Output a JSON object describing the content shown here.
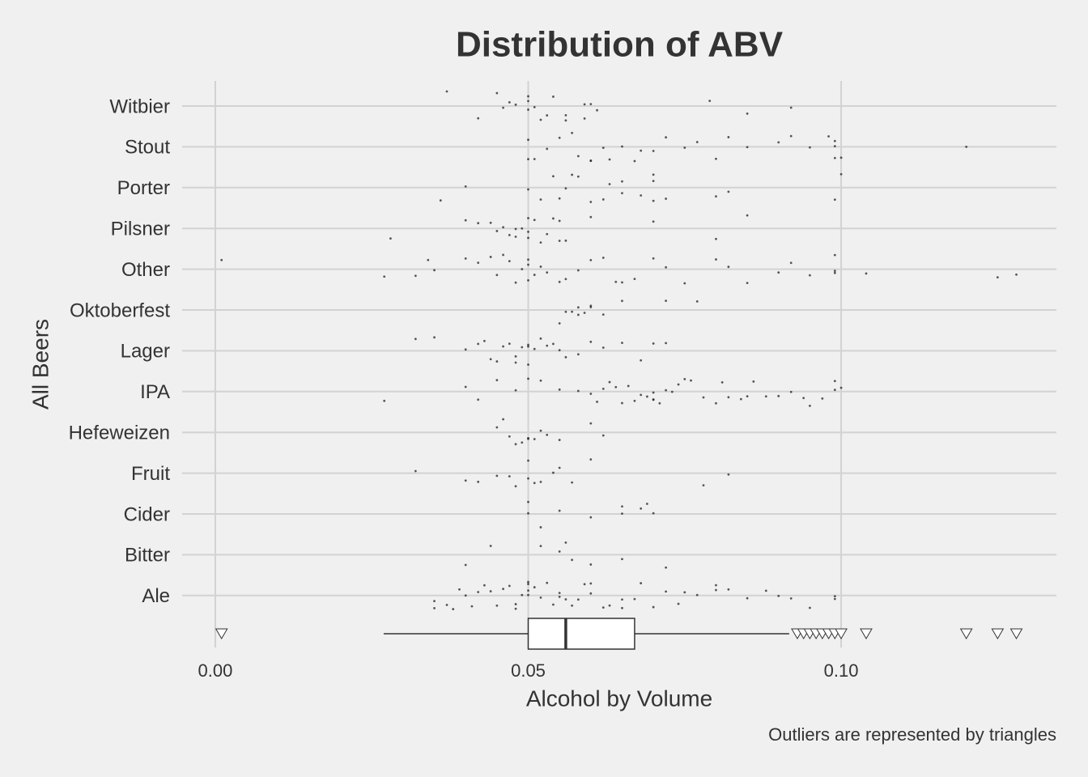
{
  "chart_data": {
    "type": "strip",
    "title": "Distribution of ABV",
    "x_label": "Alcohol by Volume",
    "y_label": "All Beers",
    "caption": "Outliers are represented by triangles",
    "xlim": [
      -0.0053,
      0.1344
    ],
    "xticks": [
      {
        "value": 0,
        "label": "0.00"
      },
      {
        "value": 0.05,
        "label": "0.05"
      },
      {
        "value": 0.1,
        "label": "0.10"
      }
    ],
    "grid": true,
    "color": "#222222",
    "categories": [
      "Witbier",
      "Stout",
      "Porter",
      "Pilsner",
      "Other",
      "Oktoberfest",
      "Lager",
      "IPA",
      "Hefeweizen",
      "Fruit",
      "Cider",
      "Bitter",
      "Ale"
    ],
    "values": [
      [
        0.037,
        0.042,
        0.045,
        0.046,
        0.047,
        0.048,
        0.05,
        0.05,
        0.05,
        0.051,
        0.052,
        0.053,
        0.054,
        0.056,
        0.056,
        0.059,
        0.059,
        0.06,
        0.061,
        0.079,
        0.085,
        0.092
      ],
      [
        0.05,
        0.05,
        0.051,
        0.053,
        0.055,
        0.057,
        0.058,
        0.06,
        0.06,
        0.062,
        0.063,
        0.065,
        0.067,
        0.068,
        0.07,
        0.072,
        0.075,
        0.077,
        0.08,
        0.082,
        0.085,
        0.09,
        0.092,
        0.095,
        0.098,
        0.099,
        0.099,
        0.099,
        0.1,
        0.12
      ],
      [
        0.036,
        0.04,
        0.05,
        0.052,
        0.054,
        0.055,
        0.056,
        0.057,
        0.058,
        0.06,
        0.062,
        0.063,
        0.065,
        0.065,
        0.068,
        0.07,
        0.07,
        0.07,
        0.072,
        0.08,
        0.082,
        0.099,
        0.1
      ],
      [
        0.028,
        0.04,
        0.042,
        0.044,
        0.045,
        0.046,
        0.047,
        0.048,
        0.048,
        0.049,
        0.05,
        0.05,
        0.05,
        0.051,
        0.052,
        0.053,
        0.054,
        0.055,
        0.055,
        0.056,
        0.06,
        0.07,
        0.08,
        0.085
      ],
      [
        0.001,
        0.027,
        0.032,
        0.034,
        0.035,
        0.04,
        0.042,
        0.044,
        0.045,
        0.046,
        0.047,
        0.048,
        0.049,
        0.05,
        0.05,
        0.05,
        0.051,
        0.052,
        0.053,
        0.055,
        0.056,
        0.058,
        0.06,
        0.062,
        0.064,
        0.065,
        0.067,
        0.07,
        0.072,
        0.075,
        0.08,
        0.082,
        0.085,
        0.09,
        0.092,
        0.095,
        0.099,
        0.099,
        0.099,
        0.104,
        0.125,
        0.128
      ],
      [
        0.055,
        0.056,
        0.057,
        0.058,
        0.058,
        0.059,
        0.06,
        0.06,
        0.062,
        0.065,
        0.072,
        0.077
      ],
      [
        0.032,
        0.035,
        0.04,
        0.042,
        0.043,
        0.044,
        0.045,
        0.046,
        0.047,
        0.048,
        0.048,
        0.049,
        0.05,
        0.05,
        0.05,
        0.051,
        0.052,
        0.053,
        0.054,
        0.055,
        0.056,
        0.058,
        0.06,
        0.062,
        0.065,
        0.068,
        0.07,
        0.072
      ],
      [
        0.027,
        0.04,
        0.042,
        0.045,
        0.048,
        0.05,
        0.052,
        0.055,
        0.058,
        0.06,
        0.061,
        0.062,
        0.063,
        0.064,
        0.065,
        0.066,
        0.067,
        0.068,
        0.069,
        0.07,
        0.07,
        0.07,
        0.071,
        0.072,
        0.073,
        0.074,
        0.075,
        0.076,
        0.078,
        0.08,
        0.081,
        0.082,
        0.084,
        0.085,
        0.086,
        0.088,
        0.09,
        0.092,
        0.094,
        0.095,
        0.097,
        0.099,
        0.099,
        0.1
      ],
      [
        0.045,
        0.046,
        0.047,
        0.048,
        0.049,
        0.05,
        0.05,
        0.051,
        0.052,
        0.053,
        0.055,
        0.06,
        0.062
      ],
      [
        0.032,
        0.04,
        0.042,
        0.045,
        0.047,
        0.048,
        0.05,
        0.05,
        0.051,
        0.052,
        0.054,
        0.055,
        0.057,
        0.06,
        0.078,
        0.082
      ],
      [
        0.05,
        0.05,
        0.052,
        0.055,
        0.06,
        0.065,
        0.065,
        0.068,
        0.069,
        0.07
      ],
      [
        0.04,
        0.044,
        0.052,
        0.055,
        0.056,
        0.057,
        0.06,
        0.065,
        0.072
      ],
      [
        0.035,
        0.035,
        0.037,
        0.038,
        0.039,
        0.04,
        0.041,
        0.042,
        0.043,
        0.044,
        0.045,
        0.046,
        0.047,
        0.048,
        0.048,
        0.049,
        0.05,
        0.05,
        0.05,
        0.05,
        0.051,
        0.052,
        0.053,
        0.054,
        0.055,
        0.055,
        0.056,
        0.057,
        0.058,
        0.059,
        0.06,
        0.06,
        0.062,
        0.063,
        0.065,
        0.065,
        0.067,
        0.068,
        0.07,
        0.072,
        0.074,
        0.075,
        0.077,
        0.08,
        0.08,
        0.082,
        0.085,
        0.088,
        0.09,
        0.092,
        0.095,
        0.099,
        0.099
      ]
    ],
    "box": {
      "whislo": 0.0269,
      "q1": 0.05,
      "med": 0.056,
      "q3": 0.067,
      "whishi": 0.0917,
      "fliers": [
        0.001,
        0.093,
        0.094,
        0.095,
        0.096,
        0.097,
        0.098,
        0.099,
        0.1,
        0.104,
        0.12,
        0.125,
        0.128
      ]
    }
  }
}
